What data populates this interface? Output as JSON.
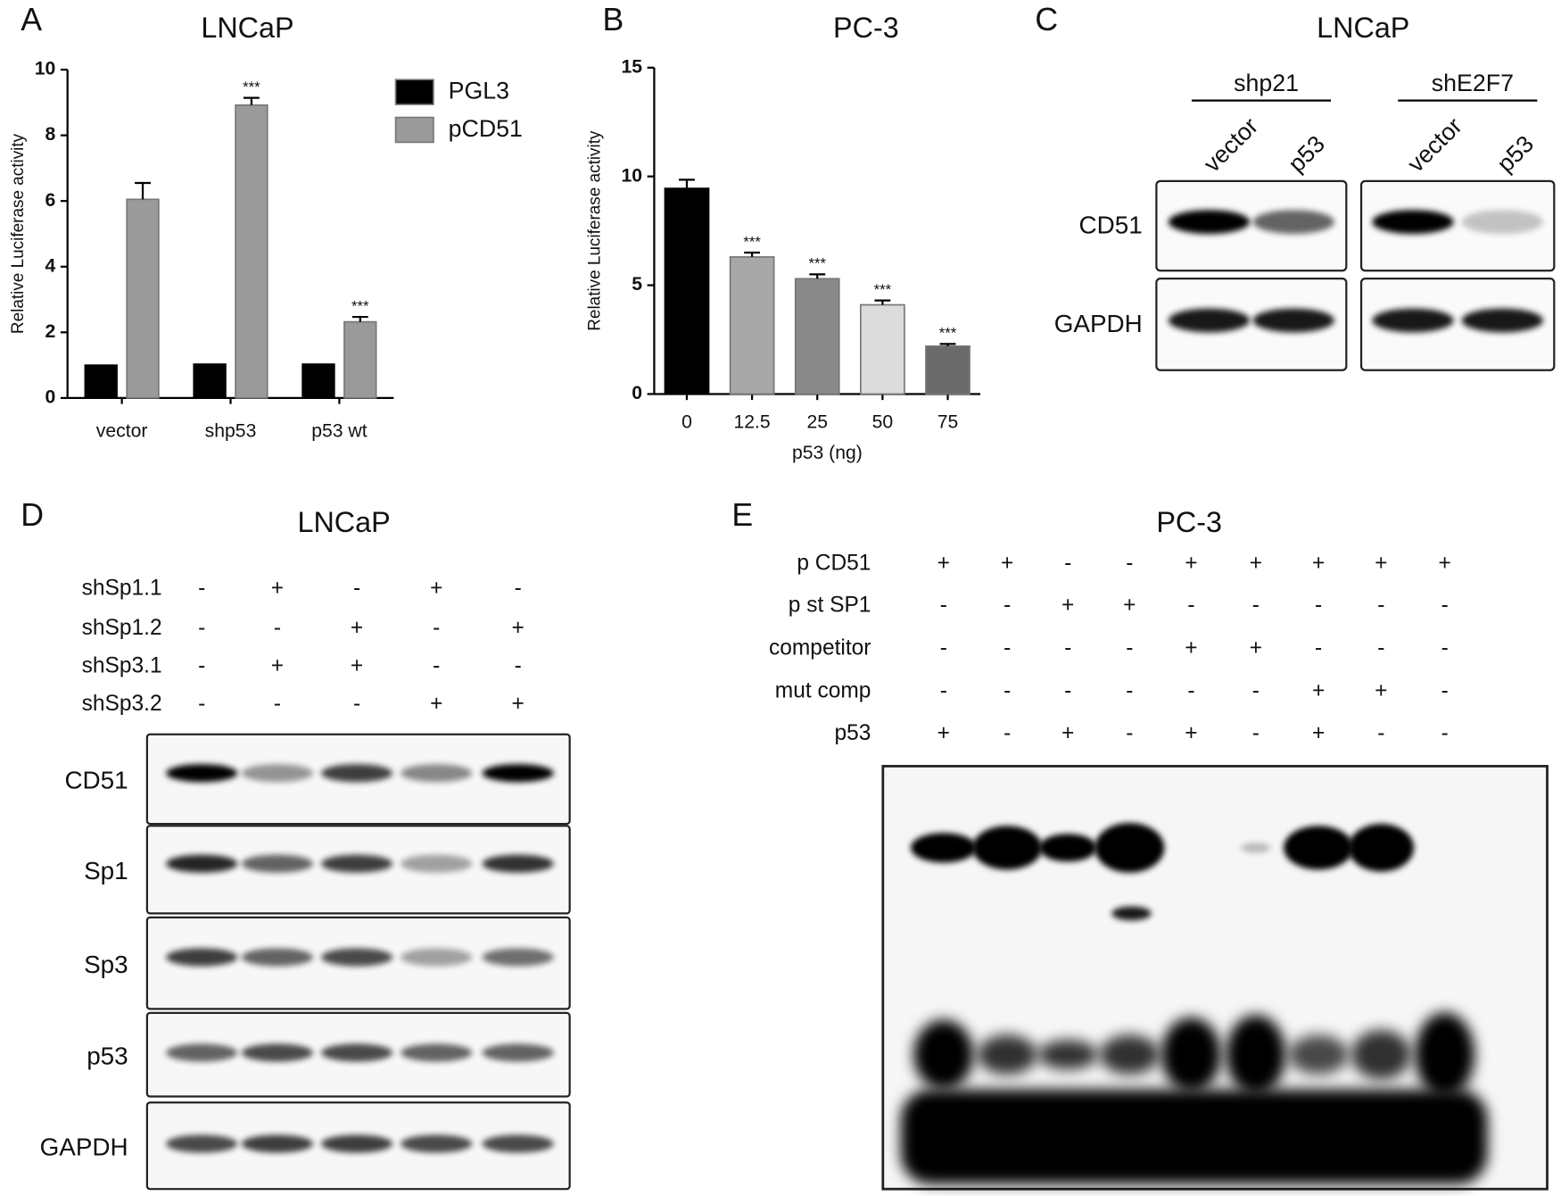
{
  "chart_data": [
    {
      "type": "bar",
      "panel": "A",
      "title": "LNCaP",
      "y_label": "Relative Luciferase activity",
      "categories": [
        "vector",
        "shp53",
        "p53 wt"
      ],
      "series": [
        {
          "name": "PGL3",
          "color": "#000000",
          "values": [
            1,
            1.03,
            1.03
          ]
        },
        {
          "name": "pCD51",
          "color": "#9a9a9a",
          "values": [
            6.05,
            8.92,
            2.32
          ],
          "errors": [
            0.5,
            0.22,
            0.15
          ],
          "significance": [
            null,
            "***",
            "***"
          ]
        }
      ],
      "ylim": [
        0,
        10
      ],
      "yticks": [
        0,
        2,
        4,
        6,
        8,
        10
      ],
      "legend": "top-right"
    },
    {
      "type": "bar",
      "panel": "B",
      "title": "PC-3",
      "y_label": "Relative Luciferase activity",
      "x_label": "p53 (ng)",
      "categories": [
        "0",
        "12.5",
        "25",
        "50",
        "75"
      ],
      "values": [
        9.45,
        6.3,
        5.3,
        4.1,
        2.2
      ],
      "errors": [
        0.4,
        0.2,
        0.2,
        0.2,
        0.1
      ],
      "colors": [
        "#000000",
        "#a8a8a8",
        "#8a8a8a",
        "#dcdcdc",
        "#6a6a6a"
      ],
      "significance": [
        null,
        "***",
        "***",
        "***",
        "***"
      ],
      "ylim": [
        0,
        15
      ],
      "yticks": [
        0,
        5,
        10,
        15
      ]
    }
  ],
  "blots": [
    {
      "panel": "C",
      "title": "LNCaP",
      "groups": [
        {
          "label": "shp21",
          "lanes": [
            "vector",
            "p53"
          ]
        },
        {
          "label": "shE2F7",
          "lanes": [
            "vector",
            "p53"
          ]
        }
      ],
      "rows": [
        "CD51",
        "GAPDH"
      ]
    },
    {
      "panel": "D",
      "title": "LNCaP",
      "conditions": [
        {
          "label": "shSp1.1",
          "signs": [
            "-",
            "+",
            "-",
            "+",
            "-"
          ]
        },
        {
          "label": "shSp1.2",
          "signs": [
            "-",
            "-",
            "+",
            "-",
            "+"
          ]
        },
        {
          "label": "shSp3.1",
          "signs": [
            "-",
            "+",
            "+",
            "-",
            "-"
          ]
        },
        {
          "label": "shSp3.2",
          "signs": [
            "-",
            "-",
            "-",
            "+",
            "+"
          ]
        }
      ],
      "rows": [
        "CD51",
        "Sp1",
        "Sp3",
        "p53",
        "GAPDH"
      ]
    },
    {
      "panel": "E",
      "title": "PC-3",
      "conditions": [
        {
          "label": "p CD51",
          "signs": [
            "+",
            "+",
            "-",
            "-",
            "+",
            "+",
            "+",
            "+",
            "+"
          ]
        },
        {
          "label": "p st SP1",
          "signs": [
            "-",
            "-",
            "+",
            "+",
            "-",
            "-",
            "-",
            "-",
            "-"
          ]
        },
        {
          "label": "competitor",
          "signs": [
            "-",
            "-",
            "-",
            "-",
            "+",
            "+",
            "-",
            "-",
            "-"
          ]
        },
        {
          "label": "mut comp",
          "signs": [
            "-",
            "-",
            "-",
            "-",
            "-",
            "-",
            "+",
            "+",
            "-"
          ]
        },
        {
          "label": "p53",
          "signs": [
            "+",
            "-",
            "+",
            "-",
            "+",
            "-",
            "+",
            "-",
            "-"
          ]
        }
      ]
    }
  ]
}
